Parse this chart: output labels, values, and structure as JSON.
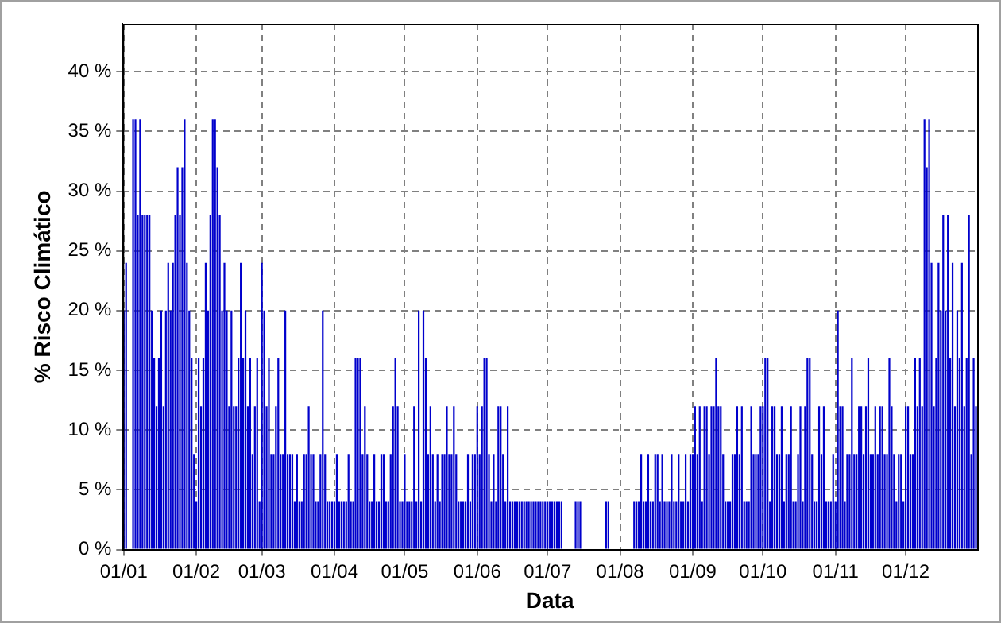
{
  "chart_data": {
    "type": "bar",
    "xlabel": "Data",
    "ylabel": "% Risco Climático",
    "color": "#0000cc",
    "categories": [
      "01/01",
      null,
      null,
      null,
      null,
      null,
      null,
      null,
      null,
      null,
      null,
      null,
      null,
      null,
      null,
      null,
      null,
      null,
      null,
      null,
      null,
      null,
      null,
      null,
      null,
      null,
      null,
      null,
      null,
      null,
      null,
      "01/02",
      null,
      null,
      null,
      null,
      null,
      null,
      null,
      null,
      null,
      null,
      null,
      null,
      null,
      null,
      null,
      null,
      null,
      null,
      null,
      null,
      null,
      null,
      null,
      null,
      null,
      null,
      null,
      "01/03",
      null,
      null,
      null,
      null,
      null,
      null,
      null,
      null,
      null,
      null,
      null,
      null,
      null,
      null,
      null,
      null,
      null,
      null,
      null,
      null,
      null,
      null,
      null,
      null,
      null,
      null,
      null,
      null,
      null,
      null,
      "01/04",
      null,
      null,
      null,
      null,
      null,
      null,
      null,
      null,
      null,
      null,
      null,
      null,
      null,
      null,
      null,
      null,
      null,
      null,
      null,
      null,
      null,
      null,
      null,
      null,
      null,
      null,
      null,
      null,
      null,
      "01/05",
      null,
      null,
      null,
      null,
      null,
      null,
      null,
      null,
      null,
      null,
      null,
      null,
      null,
      null,
      null,
      null,
      null,
      null,
      null,
      null,
      null,
      null,
      null,
      null,
      null,
      null,
      null,
      null,
      null,
      null,
      "01/06",
      null,
      null,
      null,
      null,
      null,
      null,
      null,
      null,
      null,
      null,
      null,
      null,
      null,
      null,
      null,
      null,
      null,
      null,
      null,
      null,
      null,
      null,
      null,
      null,
      null,
      null,
      null,
      null,
      null,
      "01/07",
      null,
      null,
      null,
      null,
      null,
      null,
      null,
      null,
      null,
      null,
      null,
      null,
      null,
      null,
      null,
      null,
      null,
      null,
      null,
      null,
      null,
      null,
      null,
      null,
      null,
      null,
      null,
      null,
      null,
      null,
      "01/08",
      null,
      null,
      null,
      null,
      null,
      null,
      null,
      null,
      null,
      null,
      null,
      null,
      null,
      null,
      null,
      null,
      null,
      null,
      null,
      null,
      null,
      null,
      null,
      null,
      null,
      null,
      null,
      null,
      null,
      null,
      "01/09",
      null,
      null,
      null,
      null,
      null,
      null,
      null,
      null,
      null,
      null,
      null,
      null,
      null,
      null,
      null,
      null,
      null,
      null,
      null,
      null,
      null,
      null,
      null,
      null,
      null,
      null,
      null,
      null,
      null,
      "01/10",
      null,
      null,
      null,
      null,
      null,
      null,
      null,
      null,
      null,
      null,
      null,
      null,
      null,
      null,
      null,
      null,
      null,
      null,
      null,
      null,
      null,
      null,
      null,
      null,
      null,
      null,
      null,
      null,
      null,
      null,
      "01/11",
      null,
      null,
      null,
      null,
      null,
      null,
      null,
      null,
      null,
      null,
      null,
      null,
      null,
      null,
      null,
      null,
      null,
      null,
      null,
      null,
      null,
      null,
      null,
      null,
      null,
      null,
      null,
      null,
      null,
      "01/12",
      null,
      null,
      null,
      null,
      null,
      null,
      null,
      null,
      null,
      null,
      null,
      null,
      null,
      null,
      null,
      null,
      null,
      null,
      null,
      null,
      null,
      null,
      null,
      null,
      null,
      null,
      null,
      null,
      null,
      null
    ],
    "values": [
      20,
      24,
      null,
      null,
      36,
      36,
      28,
      36,
      28,
      28,
      28,
      28,
      20,
      16,
      12,
      16,
      20,
      12,
      20,
      24,
      20,
      24,
      28,
      32,
      28,
      32,
      36,
      24,
      20,
      16,
      8,
      4,
      16,
      12,
      16,
      24,
      20,
      28,
      36,
      36,
      32,
      28,
      20,
      24,
      20,
      12,
      20,
      12,
      12,
      16,
      24,
      16,
      20,
      12,
      16,
      8,
      12,
      16,
      4,
      24,
      20,
      12,
      16,
      8,
      8,
      12,
      16,
      8,
      8,
      20,
      8,
      8,
      8,
      4,
      8,
      4,
      4,
      8,
      8,
      12,
      8,
      8,
      4,
      4,
      8,
      20,
      8,
      4,
      4,
      4,
      4,
      8,
      4,
      4,
      4,
      4,
      8,
      4,
      4,
      16,
      16,
      16,
      8,
      12,
      8,
      4,
      4,
      8,
      4,
      4,
      8,
      8,
      4,
      4,
      8,
      12,
      16,
      12,
      4,
      4,
      8,
      4,
      4,
      4,
      12,
      4,
      20,
      4,
      20,
      16,
      8,
      12,
      8,
      4,
      8,
      4,
      8,
      8,
      12,
      8,
      8,
      12,
      8,
      4,
      4,
      4,
      4,
      8,
      4,
      8,
      8,
      12,
      8,
      12,
      16,
      16,
      8,
      4,
      8,
      4,
      12,
      12,
      8,
      4,
      12,
      4,
      4,
      4,
      4,
      4,
      4,
      4,
      4,
      4,
      4,
      4,
      4,
      4,
      4,
      4,
      4,
      4,
      4,
      4,
      4,
      4,
      4,
      4,
      0,
      0,
      0,
      0,
      0,
      4,
      4,
      4,
      0,
      0,
      0,
      0,
      0,
      0,
      0,
      0,
      0,
      0,
      4,
      4,
      0,
      0,
      0,
      0,
      0,
      0,
      0,
      0,
      0,
      0,
      4,
      4,
      4,
      8,
      4,
      4,
      8,
      4,
      4,
      8,
      8,
      4,
      8,
      4,
      4,
      4,
      8,
      4,
      4,
      8,
      4,
      4,
      8,
      4,
      8,
      8,
      12,
      8,
      12,
      4,
      12,
      12,
      8,
      12,
      12,
      16,
      12,
      12,
      8,
      4,
      4,
      4,
      8,
      8,
      12,
      8,
      12,
      4,
      4,
      4,
      12,
      8,
      8,
      8,
      12,
      12,
      16,
      16,
      4,
      12,
      12,
      8,
      8,
      12,
      4,
      8,
      8,
      12,
      4,
      4,
      8,
      12,
      4,
      12,
      16,
      16,
      8,
      4,
      4,
      12,
      8,
      12,
      4,
      4,
      4,
      8,
      4,
      20,
      12,
      12,
      4,
      8,
      8,
      16,
      8,
      8,
      12,
      12,
      8,
      12,
      16,
      8,
      8,
      12,
      8,
      12,
      12,
      8,
      8,
      16,
      12,
      8,
      4,
      8,
      8,
      4,
      12,
      12,
      8,
      8,
      16,
      12,
      16,
      12,
      36,
      32,
      36,
      24,
      12,
      16,
      24,
      20,
      28,
      20,
      28,
      16,
      24,
      12,
      20,
      16,
      24,
      12,
      16,
      28,
      8,
      16,
      12
    ],
    "ylim": [
      0,
      44
    ],
    "yticks": [
      {
        "value": 0,
        "label": "0 %"
      },
      {
        "value": 5,
        "label": "5 %"
      },
      {
        "value": 10,
        "label": "10 %"
      },
      {
        "value": 15,
        "label": "15 %"
      },
      {
        "value": 20,
        "label": "20 %"
      },
      {
        "value": 25,
        "label": "25 %"
      },
      {
        "value": 30,
        "label": "30 %"
      },
      {
        "value": 35,
        "label": "35 %"
      },
      {
        "value": 40,
        "label": "40 %"
      }
    ],
    "grid": true
  }
}
